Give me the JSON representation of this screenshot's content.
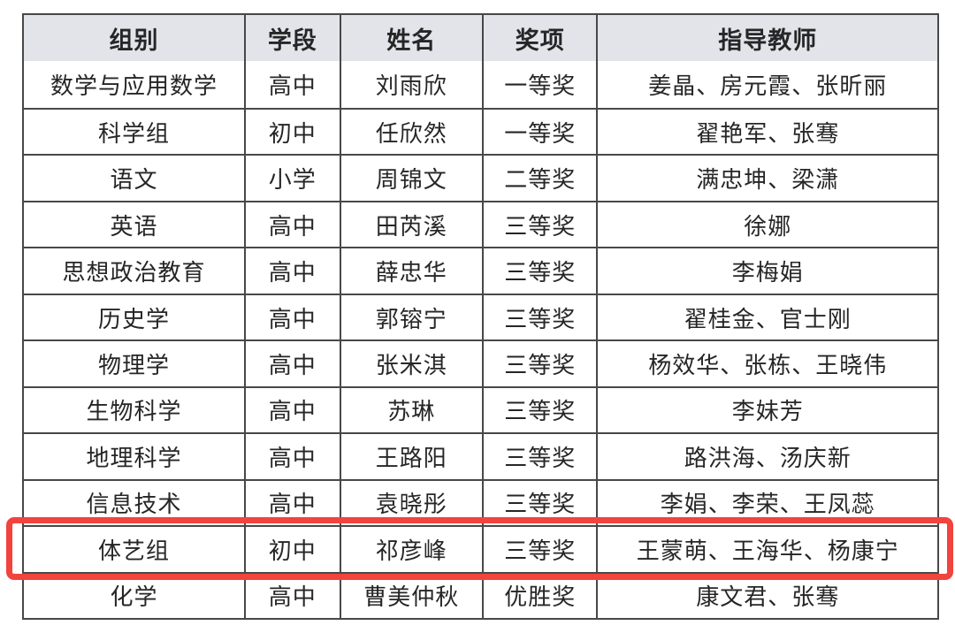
{
  "colors": {
    "header_bg": "#e2e4ea",
    "border": "#484848",
    "text": "#262626",
    "highlight_red": "#f2433e"
  },
  "table": {
    "columns": [
      "组别",
      "学段",
      "姓名",
      "奖项",
      "指导教师"
    ],
    "rows": [
      {
        "highlighted": false,
        "cells": [
          "数学与应用数学",
          "高中",
          "刘雨欣",
          "一等奖",
          "姜晶、房元霞、张昕丽"
        ]
      },
      {
        "highlighted": false,
        "cells": [
          "科学组",
          "初中",
          "任欣然",
          "一等奖",
          "翟艳军、张骞"
        ]
      },
      {
        "highlighted": false,
        "cells": [
          "语文",
          "小学",
          "周锦文",
          "二等奖",
          "满忠坤、梁潇"
        ]
      },
      {
        "highlighted": false,
        "cells": [
          "英语",
          "高中",
          "田芮溪",
          "三等奖",
          "徐娜"
        ]
      },
      {
        "highlighted": false,
        "cells": [
          "思想政治教育",
          "高中",
          "薛忠华",
          "三等奖",
          "李梅娟"
        ]
      },
      {
        "highlighted": false,
        "cells": [
          "历史学",
          "高中",
          "郭镕宁",
          "三等奖",
          "翟桂金、官士刚"
        ]
      },
      {
        "highlighted": false,
        "cells": [
          "物理学",
          "高中",
          "张米淇",
          "三等奖",
          "杨效华、张栋、王晓伟"
        ]
      },
      {
        "highlighted": false,
        "cells": [
          "生物科学",
          "高中",
          "苏琳",
          "三等奖",
          "李妹芳"
        ]
      },
      {
        "highlighted": false,
        "cells": [
          "地理科学",
          "高中",
          "王路阳",
          "三等奖",
          "路洪海、汤庆新"
        ]
      },
      {
        "highlighted": false,
        "cells": [
          "信息技术",
          "高中",
          "袁晓彤",
          "三等奖",
          "李娟、李荣、王凤蕊"
        ]
      },
      {
        "highlighted": true,
        "cells": [
          "体艺组",
          "初中",
          "祁彦峰",
          "三等奖",
          "王蒙萌、王海华、杨康宁"
        ]
      },
      {
        "highlighted": false,
        "cells": [
          "化学",
          "高中",
          "曹美仲秋",
          "优胜奖",
          "康文君、张骞"
        ]
      }
    ]
  }
}
